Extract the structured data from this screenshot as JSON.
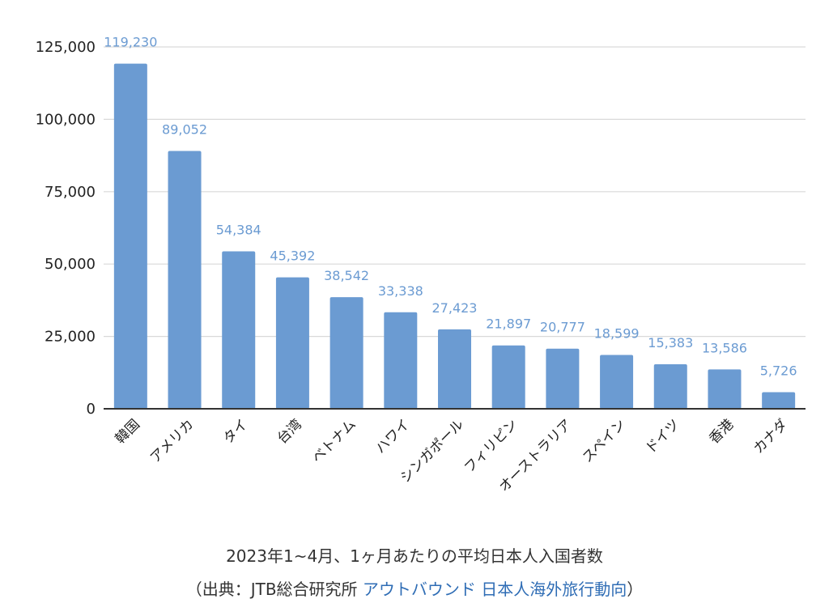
{
  "chart_data": {
    "type": "bar",
    "categories": [
      "韓国",
      "アメリカ",
      "タイ",
      "台湾",
      "ベトナム",
      "ハワイ",
      "シンガポール",
      "フィリピン",
      "オーストラリア",
      "スペイン",
      "ドイツ",
      "香港",
      "カナダ"
    ],
    "values": [
      119230,
      89052,
      54384,
      45392,
      38542,
      33338,
      27423,
      21897,
      20777,
      18599,
      15383,
      13586,
      5726
    ],
    "value_labels": [
      "119,230",
      "89,052",
      "54,384",
      "45,392",
      "38,542",
      "33,338",
      "27,423",
      "21,897",
      "20,777",
      "18,599",
      "15,383",
      "13,586",
      "5,726"
    ],
    "yticks": [
      0,
      25000,
      50000,
      75000,
      100000,
      125000
    ],
    "ytick_labels": [
      "0",
      "25,000",
      "50,000",
      "75,000",
      "100,000",
      "125,000"
    ],
    "ylim": [
      0,
      125000
    ],
    "grid": true,
    "bar_color": "#6b9bd2",
    "label_color": "#6b9bd2"
  },
  "caption": {
    "line1": "2023年1~4月、1ヶ月あたりの平均日本人入国者数",
    "source_prefix": "（出典：JTB総合研究所 ",
    "source_link": "アウトバウンド 日本人海外旅行動向",
    "source_suffix": "）",
    "link_color": "#2f6db5"
  }
}
